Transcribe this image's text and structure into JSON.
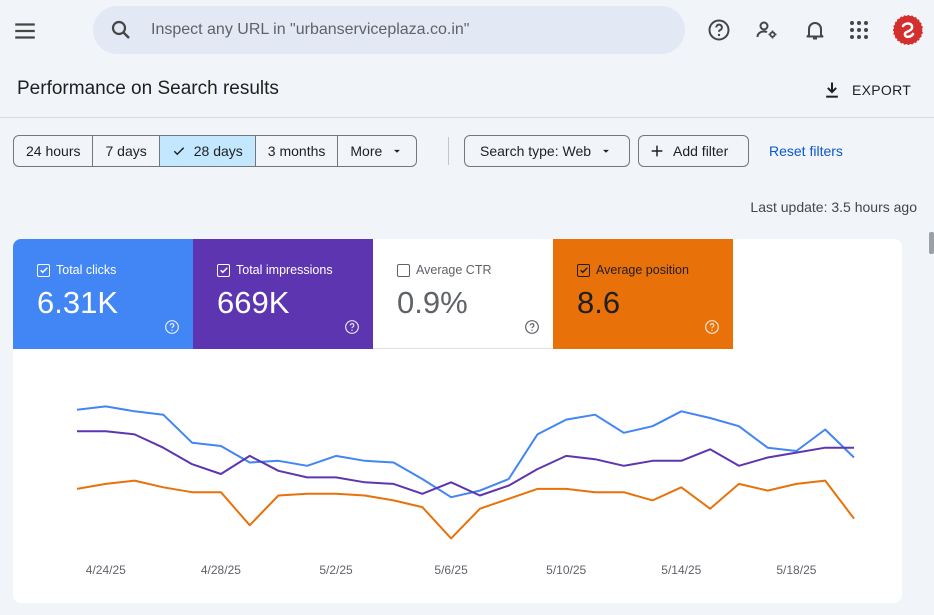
{
  "topbar": {
    "search_placeholder": "Inspect any URL in \"urbanserviceplaza.co.in\"",
    "icons": [
      "menu-icon",
      "search-icon",
      "help-icon",
      "manage-users-icon",
      "notifications-icon",
      "apps-icon",
      "avatar"
    ]
  },
  "header": {
    "title": "Performance on Search results",
    "export_label": "EXPORT"
  },
  "filters": {
    "ranges": [
      {
        "label": "24 hours",
        "active": false
      },
      {
        "label": "7 days",
        "active": false
      },
      {
        "label": "28 days",
        "active": true
      },
      {
        "label": "3 months",
        "active": false
      },
      {
        "label": "More",
        "active": false
      }
    ],
    "search_type": "Search type: Web",
    "add_filter": "Add filter",
    "reset": "Reset filters"
  },
  "last_update": "Last update: 3.5 hours ago",
  "metrics": {
    "clicks": {
      "label": "Total clicks",
      "value": "6.31K",
      "checked": true,
      "color": "#4285f4"
    },
    "impressions": {
      "label": "Total impressions",
      "value": "669K",
      "checked": true,
      "color": "#5e35b1"
    },
    "ctr": {
      "label": "Average CTR",
      "value": "0.9%",
      "checked": false
    },
    "position": {
      "label": "Average position",
      "value": "8.6",
      "checked": true,
      "color": "#e8710a"
    }
  },
  "chart_data": {
    "type": "line",
    "x": [
      "4/23/25",
      "4/24/25",
      "4/25/25",
      "4/26/25",
      "4/27/25",
      "4/28/25",
      "4/29/25",
      "4/30/25",
      "5/1/25",
      "5/2/25",
      "5/3/25",
      "5/4/25",
      "5/5/25",
      "5/6/25",
      "5/7/25",
      "5/8/25",
      "5/9/25",
      "5/10/25",
      "5/11/25",
      "5/12/25",
      "5/13/25",
      "5/14/25",
      "5/15/25",
      "5/16/25",
      "5/17/25",
      "5/18/25",
      "5/19/25",
      "5/20/25"
    ],
    "tick_labels": [
      "4/24/25",
      "4/28/25",
      "5/2/25",
      "5/6/25",
      "5/10/25",
      "5/14/25",
      "5/18/25"
    ],
    "series": [
      {
        "name": "Total clicks",
        "color": "#4285f4",
        "values": [
          0.82,
          0.84,
          0.81,
          0.79,
          0.62,
          0.6,
          0.5,
          0.51,
          0.48,
          0.54,
          0.51,
          0.5,
          0.4,
          0.29,
          0.33,
          0.4,
          0.67,
          0.76,
          0.79,
          0.68,
          0.72,
          0.81,
          0.77,
          0.72,
          0.59,
          0.57,
          0.7,
          0.53
        ]
      },
      {
        "name": "Total impressions",
        "color": "#5e35b1",
        "values": [
          0.69,
          0.69,
          0.67,
          0.59,
          0.49,
          0.43,
          0.54,
          0.45,
          0.41,
          0.41,
          0.38,
          0.37,
          0.31,
          0.38,
          0.3,
          0.36,
          0.46,
          0.54,
          0.52,
          0.48,
          0.51,
          0.51,
          0.58,
          0.48,
          0.53,
          0.56,
          0.59,
          0.59
        ]
      },
      {
        "name": "Average position",
        "color": "#e8710a",
        "values": [
          0.34,
          0.37,
          0.39,
          0.35,
          0.32,
          0.32,
          0.12,
          0.3,
          0.31,
          0.31,
          0.3,
          0.27,
          0.23,
          0.04,
          0.22,
          0.28,
          0.34,
          0.34,
          0.32,
          0.32,
          0.27,
          0.35,
          0.22,
          0.37,
          0.33,
          0.37,
          0.39,
          0.16
        ]
      }
    ]
  }
}
